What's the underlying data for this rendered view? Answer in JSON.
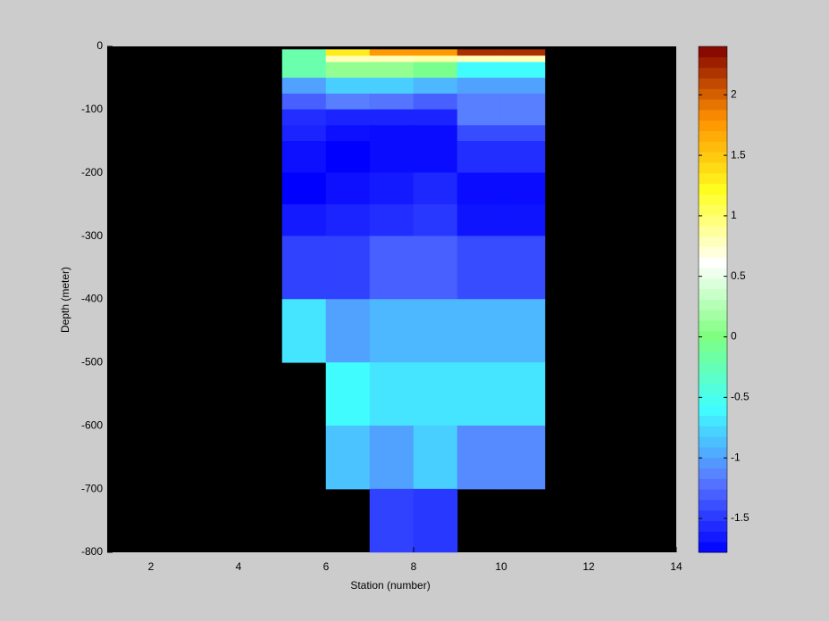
{
  "chart_data": {
    "type": "heatmap",
    "xlabel": "Station (number)",
    "ylabel": "Depth (meter)",
    "xlim": [
      1,
      14
    ],
    "ylim": [
      -800,
      0
    ],
    "xticks": [
      2,
      4,
      6,
      8,
      10,
      12,
      14
    ],
    "yticks": [
      -800,
      -700,
      -600,
      -500,
      -400,
      -300,
      -200,
      -100,
      0
    ],
    "background": "#000000",
    "x_edges": [
      5,
      6,
      7,
      8,
      9,
      10,
      11
    ],
    "y_edges": [
      -5,
      -15,
      -25,
      -50,
      -75,
      -100,
      -125,
      -150,
      -200,
      -250,
      -300,
      -400,
      -500,
      -600,
      -700,
      -800
    ],
    "values": [
      [
        -0.2,
        1.3,
        1.75,
        1.75,
        2.2,
        2.2
      ],
      [
        -0.2,
        0.8,
        0.8,
        0.85,
        0.8,
        0.8
      ],
      [
        -0.2,
        0.1,
        0.1,
        -0.05,
        -0.6,
        -0.6
      ],
      [
        -1.0,
        -0.8,
        -0.8,
        -0.9,
        -1.0,
        -1.0
      ],
      [
        -1.3,
        -1.15,
        -1.2,
        -1.3,
        -1.15,
        -1.15
      ],
      [
        -1.55,
        -1.6,
        -1.6,
        -1.6,
        -1.15,
        -1.15
      ],
      [
        -1.6,
        -1.7,
        -1.72,
        -1.72,
        -1.4,
        -1.4
      ],
      [
        -1.7,
        -1.78,
        -1.72,
        -1.72,
        -1.55,
        -1.55
      ],
      [
        -1.78,
        -1.7,
        -1.65,
        -1.58,
        -1.72,
        -1.72
      ],
      [
        -1.65,
        -1.6,
        -1.55,
        -1.5,
        -1.68,
        -1.68
      ],
      [
        -1.45,
        -1.45,
        -1.3,
        -1.3,
        -1.4,
        -1.4
      ],
      [
        -0.7,
        -1.0,
        -0.9,
        -0.9,
        -0.9,
        -0.9
      ],
      [
        null,
        -0.6,
        -0.7,
        -0.7,
        -0.7,
        -0.7
      ],
      [
        null,
        -0.85,
        -1.0,
        -0.8,
        -1.1,
        -1.1
      ],
      [
        null,
        null,
        -1.45,
        -1.5,
        null,
        null
      ]
    ],
    "colorbar": {
      "clim": [
        -1.78,
        2.4
      ],
      "ticks": [
        -1.5,
        -1,
        -0.5,
        0,
        0.5,
        1,
        1.5,
        2
      ],
      "colormap": [
        "#0000ff",
        "#5878ff",
        "#40ffff",
        "#80ff80",
        "#ffffff",
        "#ffff20",
        "#ff9000",
        "#800000"
      ]
    }
  }
}
